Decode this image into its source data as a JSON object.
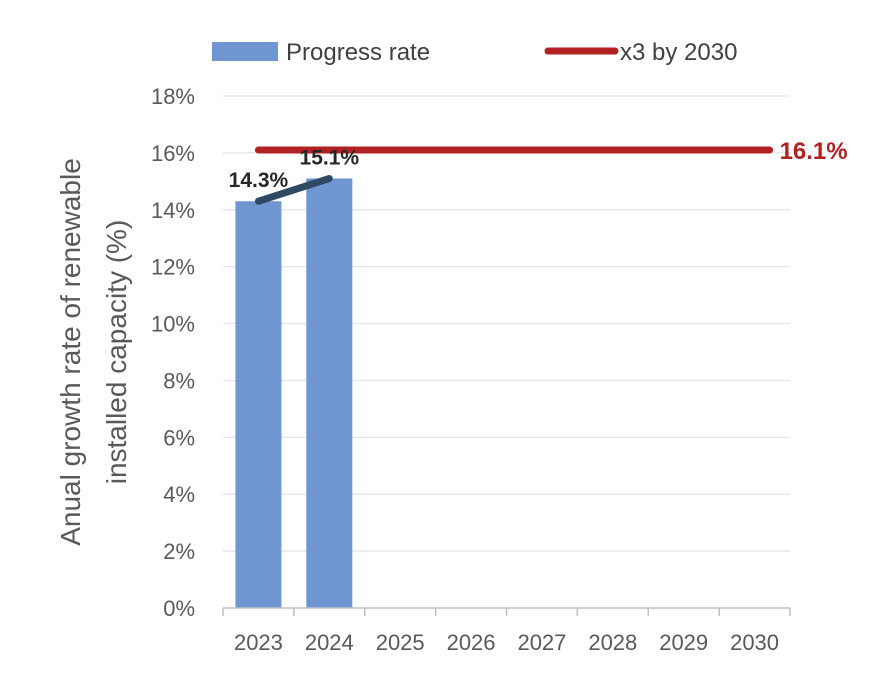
{
  "chart_data": {
    "type": "bar",
    "categories": [
      "2023",
      "2024",
      "2025",
      "2026",
      "2027",
      "2028",
      "2029",
      "2030"
    ],
    "series": [
      {
        "name": "Progress rate",
        "type": "bar",
        "color": "#7096d1",
        "values": [
          14.3,
          15.1,
          null,
          null,
          null,
          null,
          null,
          null
        ],
        "data_labels": [
          "14.3%",
          "15.1%"
        ]
      },
      {
        "name": "x3 by 2030",
        "type": "line",
        "color": "#b22222",
        "values": [
          16.1,
          16.1,
          16.1,
          16.1,
          16.1,
          16.1,
          16.1,
          16.1
        ],
        "end_label": "16.1%"
      }
    ],
    "trend_segment": {
      "color": "#2e4a62",
      "from": {
        "category": "2023",
        "value": 14.3
      },
      "to": {
        "category": "2024",
        "value": 15.1
      }
    },
    "ylabel_lines": [
      "Anual growth rate of renewable",
      "installed capacity (%)"
    ],
    "xlabel": "",
    "ylim": [
      0,
      18
    ],
    "yticks": [
      0,
      2,
      4,
      6,
      8,
      10,
      12,
      14,
      16,
      18
    ],
    "ytick_labels": [
      "0%",
      "2%",
      "4%",
      "6%",
      "8%",
      "10%",
      "12%",
      "14%",
      "16%",
      "18%"
    ],
    "grid": true,
    "legend_position": "top"
  }
}
